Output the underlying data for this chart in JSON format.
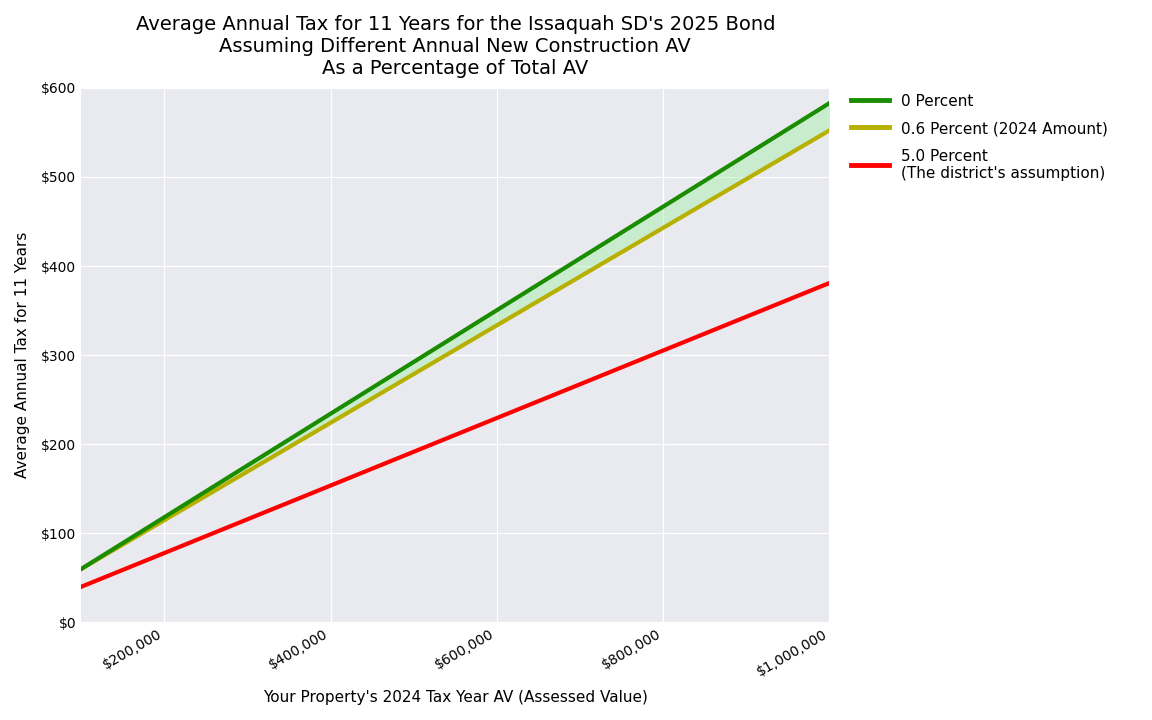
{
  "title_line1": "Average Annual Tax for 11 Years for the Issaquah SD's 2025 Bond",
  "title_line2": "Assuming Different Annual New Construction AV",
  "title_line3": "As a Percentage of Total AV",
  "xlabel": "Your Property's 2024 Tax Year AV (Assessed Value)",
  "ylabel": "Average Annual Tax for 11 Years",
  "x_start": 100000,
  "x_end": 1000000,
  "xlim_left": 100000,
  "xlim_right": 1000000,
  "ylim": [
    0,
    600
  ],
  "yticks": [
    0,
    100,
    200,
    300,
    400,
    500,
    600
  ],
  "xticks": [
    200000,
    400000,
    600000,
    800000,
    1000000
  ],
  "line_0pct_slope": 0.000581,
  "line_0pct_intercept": 1.9,
  "line_06pct_slope": 0.000547,
  "line_06pct_intercept": 5.3,
  "line_5pct_slope": 0.0003789,
  "line_5pct_intercept": 2.1,
  "color_0pct": "#1a8c00",
  "color_06pct": "#b8b000",
  "color_5pct": "#ff0000",
  "fill_color": "#90ee90",
  "fill_alpha": 0.35,
  "background_color": "#e8eaf0",
  "outer_bg": "#ffffff",
  "legend_labels_0": "0 Percent",
  "legend_labels_06": "0.6 Percent (2024 Amount)",
  "legend_labels_5a": "5.0 Percent",
  "legend_labels_5b": "(The district's assumption)",
  "title_fontsize": 14,
  "axis_label_fontsize": 11,
  "tick_fontsize": 10,
  "legend_fontsize": 11,
  "line_width": 3.0,
  "fig_width": 11.52,
  "fig_height": 7.2,
  "fig_dpi": 100
}
